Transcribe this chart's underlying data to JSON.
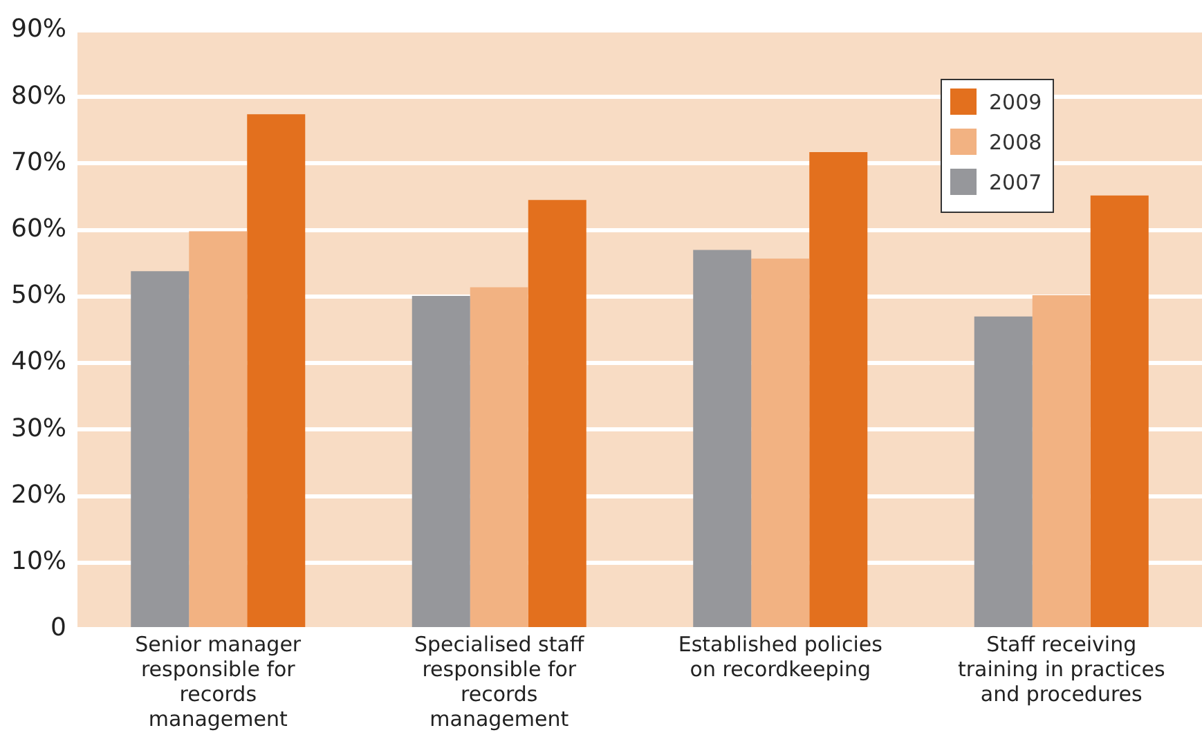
{
  "chart_data": {
    "type": "bar",
    "categories": [
      "Senior manager responsible for records management",
      "Specialised staff responsible for records management",
      "Established policies on recordkeeping",
      "Staff receiving training in practices and procedures"
    ],
    "series": [
      {
        "name": "2007",
        "color": "#96979b",
        "values": [
          53.8,
          50.1,
          57.0,
          47.0
        ]
      },
      {
        "name": "2008",
        "color": "#f2b282",
        "values": [
          59.8,
          51.4,
          55.7,
          50.2
        ]
      },
      {
        "name": "2009",
        "color": "#e3701e",
        "values": [
          77.4,
          64.5,
          71.7,
          65.2
        ]
      }
    ],
    "ylim": [
      0,
      90
    ],
    "yticks": [
      {
        "value": 0,
        "label": "0"
      },
      {
        "value": 10,
        "label": "10%"
      },
      {
        "value": 20,
        "label": "20%"
      },
      {
        "value": 30,
        "label": "30%"
      },
      {
        "value": 40,
        "label": "40%"
      },
      {
        "value": 50,
        "label": "50%"
      },
      {
        "value": 60,
        "label": "60%"
      },
      {
        "value": 70,
        "label": "70%"
      },
      {
        "value": 80,
        "label": "80%"
      },
      {
        "value": 90,
        "label": "90%"
      }
    ],
    "grid": "y",
    "legend": "top right"
  }
}
